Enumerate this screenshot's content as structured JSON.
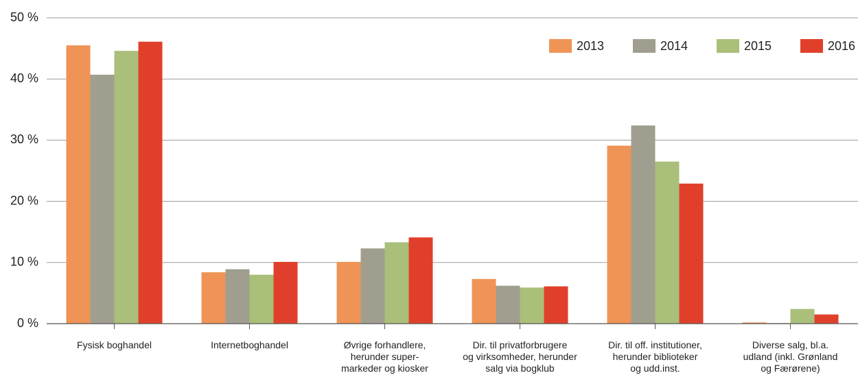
{
  "chart_data": {
    "type": "bar",
    "categories": [
      [
        "Fysisk boghandel"
      ],
      [
        "Internetboghandel"
      ],
      [
        "Øvrige forhandlere,",
        "herunder super-",
        "markeder og kiosker"
      ],
      [
        "Dir. til privatforbrugere",
        "og virksomheder, herunder",
        "salg via bogklub"
      ],
      [
        "Dir. til off. institutioner,",
        "herunder biblioteker",
        "og udd.inst."
      ],
      [
        "Diverse salg, bl.a.",
        "udland (inkl. Grønland",
        "og Færørene)"
      ]
    ],
    "series": [
      {
        "name": "2013",
        "color": "#ef9456",
        "values": [
          45.5,
          8.4,
          10.1,
          7.3,
          29.1,
          0.2
        ]
      },
      {
        "name": "2014",
        "color": "#a09f8f",
        "values": [
          40.7,
          8.9,
          12.3,
          6.2,
          32.4,
          0.1
        ]
      },
      {
        "name": "2015",
        "color": "#a9bf7a",
        "values": [
          44.6,
          8.0,
          13.3,
          5.9,
          26.5,
          2.4
        ]
      },
      {
        "name": "2016",
        "color": "#e0402b",
        "values": [
          46.1,
          10.1,
          14.1,
          6.1,
          22.9,
          1.5
        ]
      }
    ],
    "ylim": [
      0,
      50
    ],
    "yticks": [
      {
        "value": 0,
        "label": "0 %"
      },
      {
        "value": 10,
        "label": "10 %"
      },
      {
        "value": 20,
        "label": "20 %"
      },
      {
        "value": 30,
        "label": "30 %"
      },
      {
        "value": 40,
        "label": "40 %"
      },
      {
        "value": 50,
        "label": "50 %"
      }
    ],
    "grid": true,
    "legend": "top-right"
  }
}
